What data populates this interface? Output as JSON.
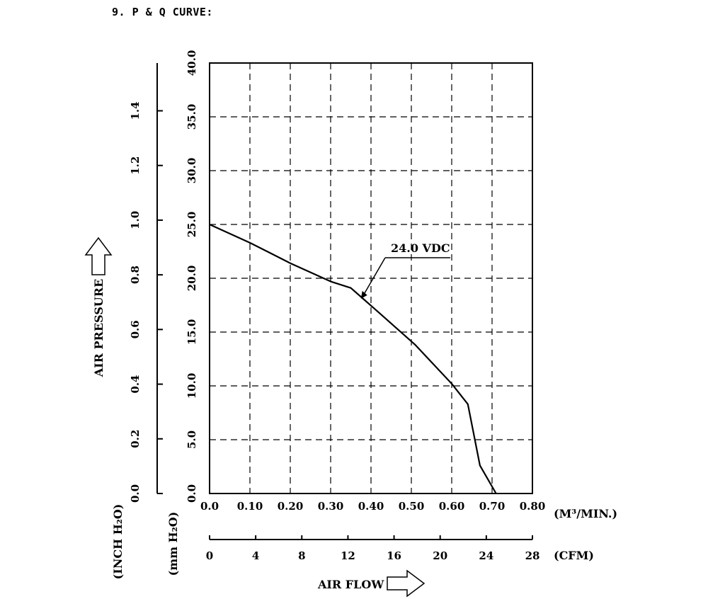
{
  "heading": "9. P & Q CURVE:",
  "chart_data": {
    "type": "line",
    "series": [
      {
        "name": "24.0 VDC",
        "x": [
          0.0,
          0.1,
          0.2,
          0.3,
          0.35,
          0.42,
          0.51,
          0.6,
          0.64,
          0.67,
          0.71
        ],
        "y": [
          25.0,
          23.3,
          21.4,
          19.7,
          19.1,
          16.8,
          13.8,
          10.2,
          8.3,
          2.6,
          0.0
        ]
      }
    ],
    "annotation": "24.0 VDC",
    "xlim": [
      0.0,
      0.8
    ],
    "ylim": [
      0.0,
      40.0
    ],
    "grid": true,
    "x_ticks": [
      "0.0",
      "0.10",
      "0.20",
      "0.30",
      "0.40",
      "0.50",
      "0.60",
      "0.70",
      "0.80"
    ],
    "x_unit": "(M³/MIN.)",
    "cfm_ticks": [
      "0",
      "4",
      "8",
      "12",
      "16",
      "20",
      "24",
      "28"
    ],
    "cfm_unit": "(CFM)",
    "mm_ticks": [
      "0.0",
      "5.0",
      "10.0",
      "15.0",
      "20.0",
      "25.0",
      "30.0",
      "35.0",
      "40.0"
    ],
    "mm_unit": "(mm H₂O)",
    "inch_ticks": [
      "0.0",
      "0.2",
      "0.4",
      "0.6",
      "0.8",
      "1.0",
      "1.2",
      "1.4"
    ],
    "inch_unit": "(INCH H₂O)",
    "ylabel": "AIR PRESSURE",
    "xlabel": "AIR FLOW"
  }
}
